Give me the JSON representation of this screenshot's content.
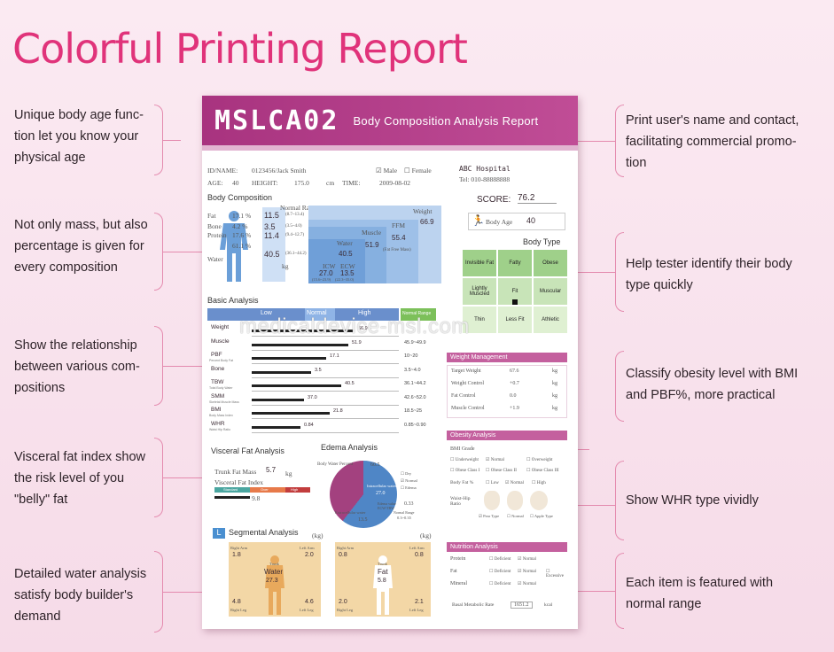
{
  "heading": "Colorful Printing Report",
  "watermark": "medicaldevice-msl.com",
  "left_notes": [
    "Unique body age func-\ntion let you know your\nphysical age",
    "Not only mass, but also\npercentage is given for\nevery composition",
    "Show the relationship\nbetween various com-\npositions",
    "Visceral fat index show\nthe risk level of you\n\"belly\" fat",
    "Detailed water analysis\nsatisfy body builder's\ndemand"
  ],
  "right_notes": [
    "Print user's name and contact,\nfacilitating commercial promo-\ntion",
    "Help tester identify their body\ntype quickly",
    "Classify obesity level with BMI\nand PBF%, more practical",
    "Show WHR type vividly",
    "Each item is featured with\nnormal range"
  ],
  "report": {
    "model": "MSLCA02",
    "title": "Body Composition Analysis Report",
    "id_label": "ID/NAME:",
    "id_value": "0123456/Jack Smith",
    "male": "Male",
    "female": "Female",
    "age_label": "AGE:",
    "age_value": "40",
    "height_label": "HEIGHT:",
    "height_value": "175.0",
    "height_unit": "cm",
    "time_label": "TIME:",
    "time_value": "2009-08-02",
    "hospital": "ABC Hospital",
    "tel": "Tel: 010-88888888",
    "score_label": "SCORE:",
    "score_value": "76.2",
    "body_age_label": "Body Age",
    "body_age_value": "40",
    "body_comp_title": "Body Composition",
    "normal_range": "Normal Range",
    "kg": "kg",
    "comp_labels": [
      "Fat",
      "Bone",
      "Protein",
      "Water"
    ],
    "comp_pct": [
      "17.1 %",
      "4.2 %",
      "17.6 %",
      "61.1 %"
    ],
    "comp_values": [
      "11.5",
      "3.5",
      "11.4",
      "40.5"
    ],
    "comp_ranges": [
      "(8.7~13.4)",
      "(3.5~4.0)",
      "(9.4~12.7)",
      "(36.1~44.2)"
    ],
    "muscle_label": "Muscle",
    "muscle_value": "51.9",
    "ffm_label": "FFM",
    "ffm_value": "55.4",
    "ffm_sub": "(Fat Free Mass)",
    "weight_label": "Weight",
    "weight_value": "66.9",
    "water_inner_label": "Water",
    "water_inner_value": "40.5",
    "icw_label": "ICW",
    "ecw_label": "ECW",
    "icw_value": "27.0",
    "ecw_value": "13.5",
    "icw_range": "(15.6~23.9)",
    "ecw_range": "(22.3~35.0)",
    "basic_title": "Basic Analysis",
    "basic_header": [
      "Low",
      "Normal",
      "High",
      "Normal Range"
    ],
    "basic_rows": [
      {
        "name": "Weight",
        "sub": "",
        "value": "66.9",
        "range": "",
        "frac": 0.55
      },
      {
        "name": "Muscle",
        "sub": "",
        "value": "51.9",
        "range": "45.9~49.9",
        "frac": 0.52
      },
      {
        "name": "PBF",
        "sub": "Percent Body Fat",
        "value": "17.1",
        "range": "10~20",
        "frac": 0.4
      },
      {
        "name": "Bone",
        "sub": "",
        "value": "3.5",
        "range": "3.5~4.0",
        "frac": 0.32
      },
      {
        "name": "TBW",
        "sub": "Total Body Water",
        "value": "40.5",
        "range": "36.1~44.2",
        "frac": 0.48
      },
      {
        "name": "SMM",
        "sub": "Skeletal Muscle Mass",
        "value": "37.0",
        "range": "42.6~52.0",
        "frac": 0.28
      },
      {
        "name": "BMI",
        "sub": "Body Mass Index",
        "value": "21.8",
        "range": "18.5~25",
        "frac": 0.42
      },
      {
        "name": "WHR",
        "sub": "Waist Hip Ratio",
        "value": "0.84",
        "range": "0.85~0.90",
        "frac": 0.26
      }
    ],
    "body_type_title": "Body Type",
    "body_types": [
      "Invisible Fat",
      "Fatty",
      "Obese",
      "Lightly Muscled",
      "Fit",
      "Muscular",
      "Thin",
      "Less Fit",
      "Athletic"
    ],
    "weight_mgmt_title": "Weight Management",
    "weight_mgmt_rows": [
      {
        "label": "Target Weight",
        "value": "67.6",
        "unit": "kg"
      },
      {
        "label": "Weight Control",
        "value": "+0.7",
        "unit": "kg"
      },
      {
        "label": "Fat Control",
        "value": "0.0",
        "unit": "kg"
      },
      {
        "label": "Muscle Control",
        "value": "+1.9",
        "unit": "kg"
      }
    ],
    "obesity_title": "Obesity Analysis",
    "bmi_grade": "BMI Grade",
    "bmi_options": [
      "Underweight",
      "Normal",
      "Overweight",
      "Obese Class I",
      "Obese Class II",
      "Obese Class III"
    ],
    "body_fat_label": "Body Fat %",
    "body_fat_options": [
      "Low",
      "Normal",
      "High"
    ],
    "whr_label": "Waist-Hip Ratio",
    "whr_types": [
      "Pear Type",
      "Normal",
      "Apple Type"
    ],
    "visceral_title": "Visceral Fat Analysis",
    "trunk_fat_label": "Trunk Fat Mass",
    "trunk_fat_value": "5.7",
    "visceral_index_label": "Visceral Fat Index",
    "visceral_scale": [
      "Standard",
      "Over",
      "High"
    ],
    "visceral_value": "9.8",
    "edema_title": "Edema Analysis",
    "edema_bwp": "Body Water Percent",
    "edema_bwp_value": "60.5",
    "edema_icw_label": "Intracellular water",
    "edema_icw_value": "27.0",
    "edema_ecw_label": "Extracellular water",
    "edema_ecw_value": "13.5",
    "edema_ratio_label": "Edema value ECW/TBW",
    "edema_ratio_value": "0.33",
    "edema_normal_label": "Normal Range",
    "edema_normal_range": "0.3~0.35",
    "edema_opts": [
      "Dry",
      "Normal",
      "Edema"
    ],
    "nutrition_title": "Nutrition Analysis",
    "nutrition_rows": [
      {
        "label": "Protein",
        "options": [
          "Deficient",
          "Normal"
        ]
      },
      {
        "label": "Fat",
        "options": [
          "Deficient",
          "Normal",
          "Excessive"
        ]
      },
      {
        "label": "Mineral",
        "options": [
          "Deficient",
          "Normal"
        ]
      }
    ],
    "bmr_label": "Basal Metabolic Rate",
    "bmr_value": "1651.2",
    "bmr_unit": "kcal",
    "seg_title": "Segmental Analysis",
    "seg_unit": "(kg)",
    "seg_water": {
      "ra": "1.8",
      "la": "2.0",
      "trunk": "27.3",
      "rl": "4.8",
      "ll": "4.6",
      "center": "Water"
    },
    "seg_fat": {
      "ra": "0.8",
      "la": "0.8",
      "trunk": "5.8",
      "rl": "2.0",
      "ll": "2.1",
      "center": "Fat"
    },
    "seg_limbs": [
      "Right Arm",
      "Left Arm",
      "Trunk",
      "Right Leg",
      "Left Leg"
    ]
  },
  "colors": {
    "heading": "#e0337a",
    "banner": "#a8337f",
    "accent": "#c4609e",
    "chart_blue": "#a9c6ea"
  }
}
